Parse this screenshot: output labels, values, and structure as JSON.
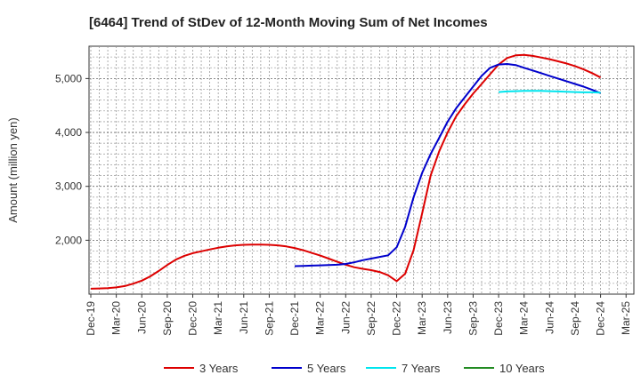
{
  "chart_data": {
    "type": "line",
    "title": "[6464]  Trend of StDev of 12-Month Moving Sum of Net Incomes",
    "xlabel": "",
    "ylabel": "Amount (million yen)",
    "x_ticks": [
      "Dec-19",
      "Mar-20",
      "Jun-20",
      "Sep-20",
      "Dec-20",
      "Mar-21",
      "Jun-21",
      "Sep-21",
      "Dec-21",
      "Mar-22",
      "Jun-22",
      "Sep-22",
      "Dec-22",
      "Mar-23",
      "Jun-23",
      "Sep-23",
      "Dec-23",
      "Mar-24",
      "Jun-24",
      "Sep-24",
      "Dec-24",
      "Mar-25"
    ],
    "y_ticks": [
      2000,
      3000,
      4000,
      5000
    ],
    "y_tick_labels": [
      "2,000",
      "3,000",
      "4,000",
      "5,000"
    ],
    "ylim": [
      1000,
      5600
    ],
    "grid": true,
    "legend_position": "bottom",
    "series": [
      {
        "name": "3 Years",
        "color": "#dd0000",
        "x": [
          "2019-12",
          "2020-01",
          "2020-02",
          "2020-03",
          "2020-04",
          "2020-05",
          "2020-06",
          "2020-07",
          "2020-08",
          "2020-09",
          "2020-10",
          "2020-11",
          "2020-12",
          "2021-01",
          "2021-02",
          "2021-03",
          "2021-04",
          "2021-05",
          "2021-06",
          "2021-07",
          "2021-08",
          "2021-09",
          "2021-10",
          "2021-11",
          "2021-12",
          "2022-01",
          "2022-02",
          "2022-03",
          "2022-04",
          "2022-05",
          "2022-06",
          "2022-07",
          "2022-08",
          "2022-09",
          "2022-10",
          "2022-11",
          "2022-12",
          "2023-01",
          "2023-02",
          "2023-03",
          "2023-04",
          "2023-05",
          "2023-06",
          "2023-07",
          "2023-08",
          "2023-09",
          "2023-10",
          "2023-11",
          "2023-12",
          "2024-01",
          "2024-02",
          "2024-03",
          "2024-04",
          "2024-05",
          "2024-06",
          "2024-07",
          "2024-08",
          "2024-09",
          "2024-10",
          "2024-11",
          "2024-12"
        ],
        "values": [
          1100,
          1105,
          1110,
          1125,
          1150,
          1195,
          1250,
          1330,
          1430,
          1540,
          1640,
          1710,
          1760,
          1795,
          1830,
          1860,
          1885,
          1905,
          1915,
          1920,
          1920,
          1915,
          1905,
          1885,
          1855,
          1815,
          1765,
          1715,
          1660,
          1600,
          1545,
          1500,
          1470,
          1445,
          1410,
          1350,
          1240,
          1380,
          1820,
          2500,
          3200,
          3650,
          4000,
          4300,
          4520,
          4720,
          4900,
          5080,
          5260,
          5380,
          5430,
          5440,
          5420,
          5390,
          5360,
          5320,
          5280,
          5230,
          5170,
          5100,
          5020
        ]
      },
      {
        "name": "5 Years",
        "color": "#0000cc",
        "x": [
          "2021-12",
          "2022-01",
          "2022-02",
          "2022-03",
          "2022-04",
          "2022-05",
          "2022-06",
          "2022-07",
          "2022-08",
          "2022-09",
          "2022-10",
          "2022-11",
          "2022-12",
          "2023-01",
          "2023-02",
          "2023-03",
          "2023-04",
          "2023-05",
          "2023-06",
          "2023-07",
          "2023-08",
          "2023-09",
          "2023-10",
          "2023-11",
          "2023-12",
          "2024-01",
          "2024-02",
          "2024-03",
          "2024-04",
          "2024-05",
          "2024-06",
          "2024-07",
          "2024-08",
          "2024-09",
          "2024-10",
          "2024-11",
          "2024-12"
        ],
        "values": [
          1520,
          1525,
          1530,
          1535,
          1540,
          1545,
          1560,
          1590,
          1630,
          1660,
          1690,
          1720,
          1870,
          2250,
          2800,
          3250,
          3600,
          3900,
          4200,
          4450,
          4650,
          4850,
          5050,
          5200,
          5260,
          5270,
          5250,
          5200,
          5150,
          5100,
          5050,
          5000,
          4950,
          4900,
          4850,
          4790,
          4730
        ]
      },
      {
        "name": "7 Years",
        "color": "#00e5ee",
        "x": [
          "2023-12",
          "2024-01",
          "2024-02",
          "2024-03",
          "2024-04",
          "2024-05",
          "2024-06",
          "2024-07",
          "2024-08",
          "2024-09",
          "2024-10",
          "2024-11",
          "2024-12"
        ],
        "values": [
          4750,
          4760,
          4765,
          4770,
          4770,
          4770,
          4765,
          4760,
          4755,
          4750,
          4745,
          4745,
          4740
        ]
      },
      {
        "name": "10 Years",
        "color": "#228b22",
        "x": [],
        "values": []
      }
    ]
  }
}
